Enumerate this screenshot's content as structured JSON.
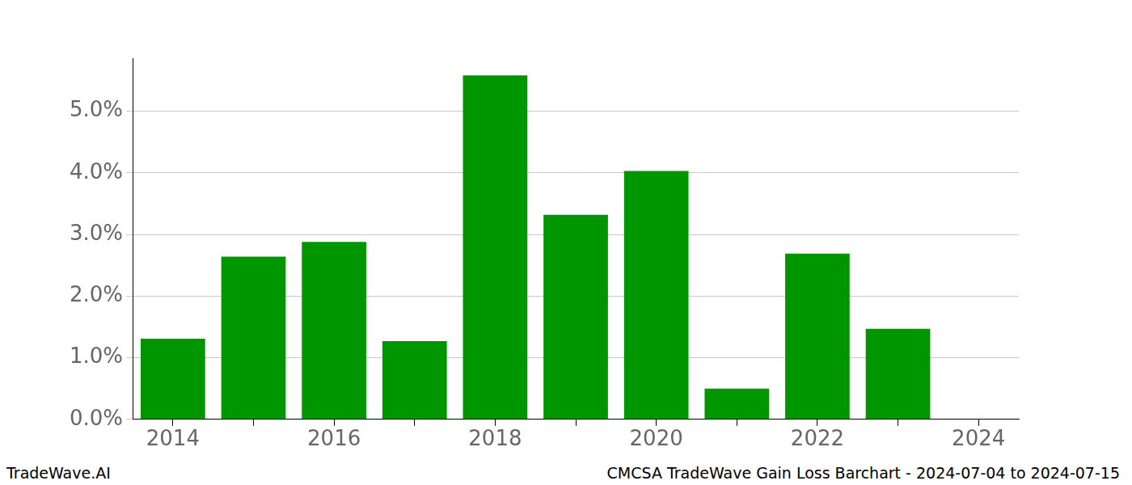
{
  "chart_data": {
    "type": "bar",
    "title": "CMCSA TradeWave Gain Loss Barchart - 2024-07-04 to 2024-07-15",
    "source": "TradeWave.AI",
    "categories": [
      "2014",
      null,
      "2016",
      null,
      "2018",
      null,
      "2020",
      null,
      "2022",
      null,
      "2024"
    ],
    "values": [
      1.31,
      2.64,
      2.88,
      1.27,
      5.58,
      3.32,
      4.03,
      0.5,
      2.69,
      1.47,
      null
    ],
    "color": "#009600",
    "ylim": [
      0,
      5.86
    ],
    "yticks": [
      {
        "value": 0,
        "label": "0.0%"
      },
      {
        "value": 1,
        "label": "1.0%"
      },
      {
        "value": 2,
        "label": "2.0%"
      },
      {
        "value": 3,
        "label": "3.0%"
      },
      {
        "value": 4,
        "label": "4.0%"
      },
      {
        "value": 5,
        "label": "5.0%"
      }
    ],
    "grid": true
  }
}
